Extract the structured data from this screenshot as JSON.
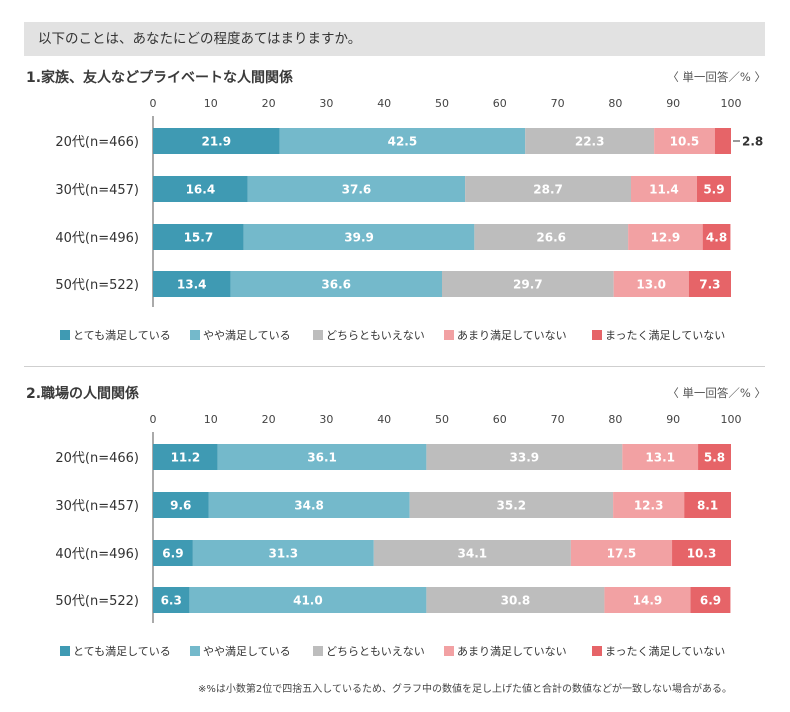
{
  "question": "以下のことは、あなたにどの程度あてはまりますか。",
  "colors": [
    "#3f9ab3",
    "#74b9cb",
    "#bdbdbd",
    "#f2a1a3",
    "#e66468"
  ],
  "footnote": "※%は小数第2位で四捨五入しているため、グラフ中の数値を足し上げた値と合計の数値などが一致しない場合がある。",
  "chart_data": [
    {
      "type": "bar",
      "orientation": "horizontal-stacked",
      "title": "1.家族、友人などプライベートな人間関係",
      "unit_label": "〈 単一回答／% 〉",
      "xlim": [
        0,
        100
      ],
      "ticks": [
        "0",
        "10",
        "20",
        "30",
        "40",
        "50",
        "60",
        "70",
        "80",
        "90",
        "100"
      ],
      "grid": false,
      "legend_position": "bottom",
      "categories": [
        "20代(n=466)",
        "30代(n=457)",
        "40代(n=496)",
        "50代(n=522)"
      ],
      "series": [
        {
          "name": "とても満足している",
          "values": [
            21.9,
            16.4,
            15.7,
            13.4
          ]
        },
        {
          "name": "やや満足している",
          "values": [
            42.5,
            37.6,
            39.9,
            36.6
          ]
        },
        {
          "name": "どちらともいえない",
          "values": [
            22.3,
            28.7,
            26.6,
            29.7
          ]
        },
        {
          "name": "あまり満足していない",
          "values": [
            10.5,
            11.4,
            12.9,
            13.0
          ]
        },
        {
          "name": "まったく満足していない",
          "values": [
            2.8,
            5.9,
            4.8,
            7.3
          ]
        }
      ]
    },
    {
      "type": "bar",
      "orientation": "horizontal-stacked",
      "title": "2.職場の人間関係",
      "unit_label": "〈 単一回答／% 〉",
      "xlim": [
        0,
        100
      ],
      "ticks": [
        "0",
        "10",
        "20",
        "30",
        "40",
        "50",
        "60",
        "70",
        "80",
        "90",
        "100"
      ],
      "grid": false,
      "legend_position": "bottom",
      "categories": [
        "20代(n=466)",
        "30代(n=457)",
        "40代(n=496)",
        "50代(n=522)"
      ],
      "series": [
        {
          "name": "とても満足している",
          "values": [
            11.2,
            9.6,
            6.9,
            6.3
          ]
        },
        {
          "name": "やや満足している",
          "values": [
            36.1,
            34.8,
            31.3,
            41.0
          ]
        },
        {
          "name": "どちらともいえない",
          "values": [
            33.9,
            35.2,
            34.1,
            30.8
          ]
        },
        {
          "name": "あまり満足していない",
          "values": [
            13.1,
            12.3,
            17.5,
            14.9
          ]
        },
        {
          "name": "まったく満足していない",
          "values": [
            5.8,
            8.1,
            10.3,
            6.9
          ]
        }
      ]
    }
  ]
}
